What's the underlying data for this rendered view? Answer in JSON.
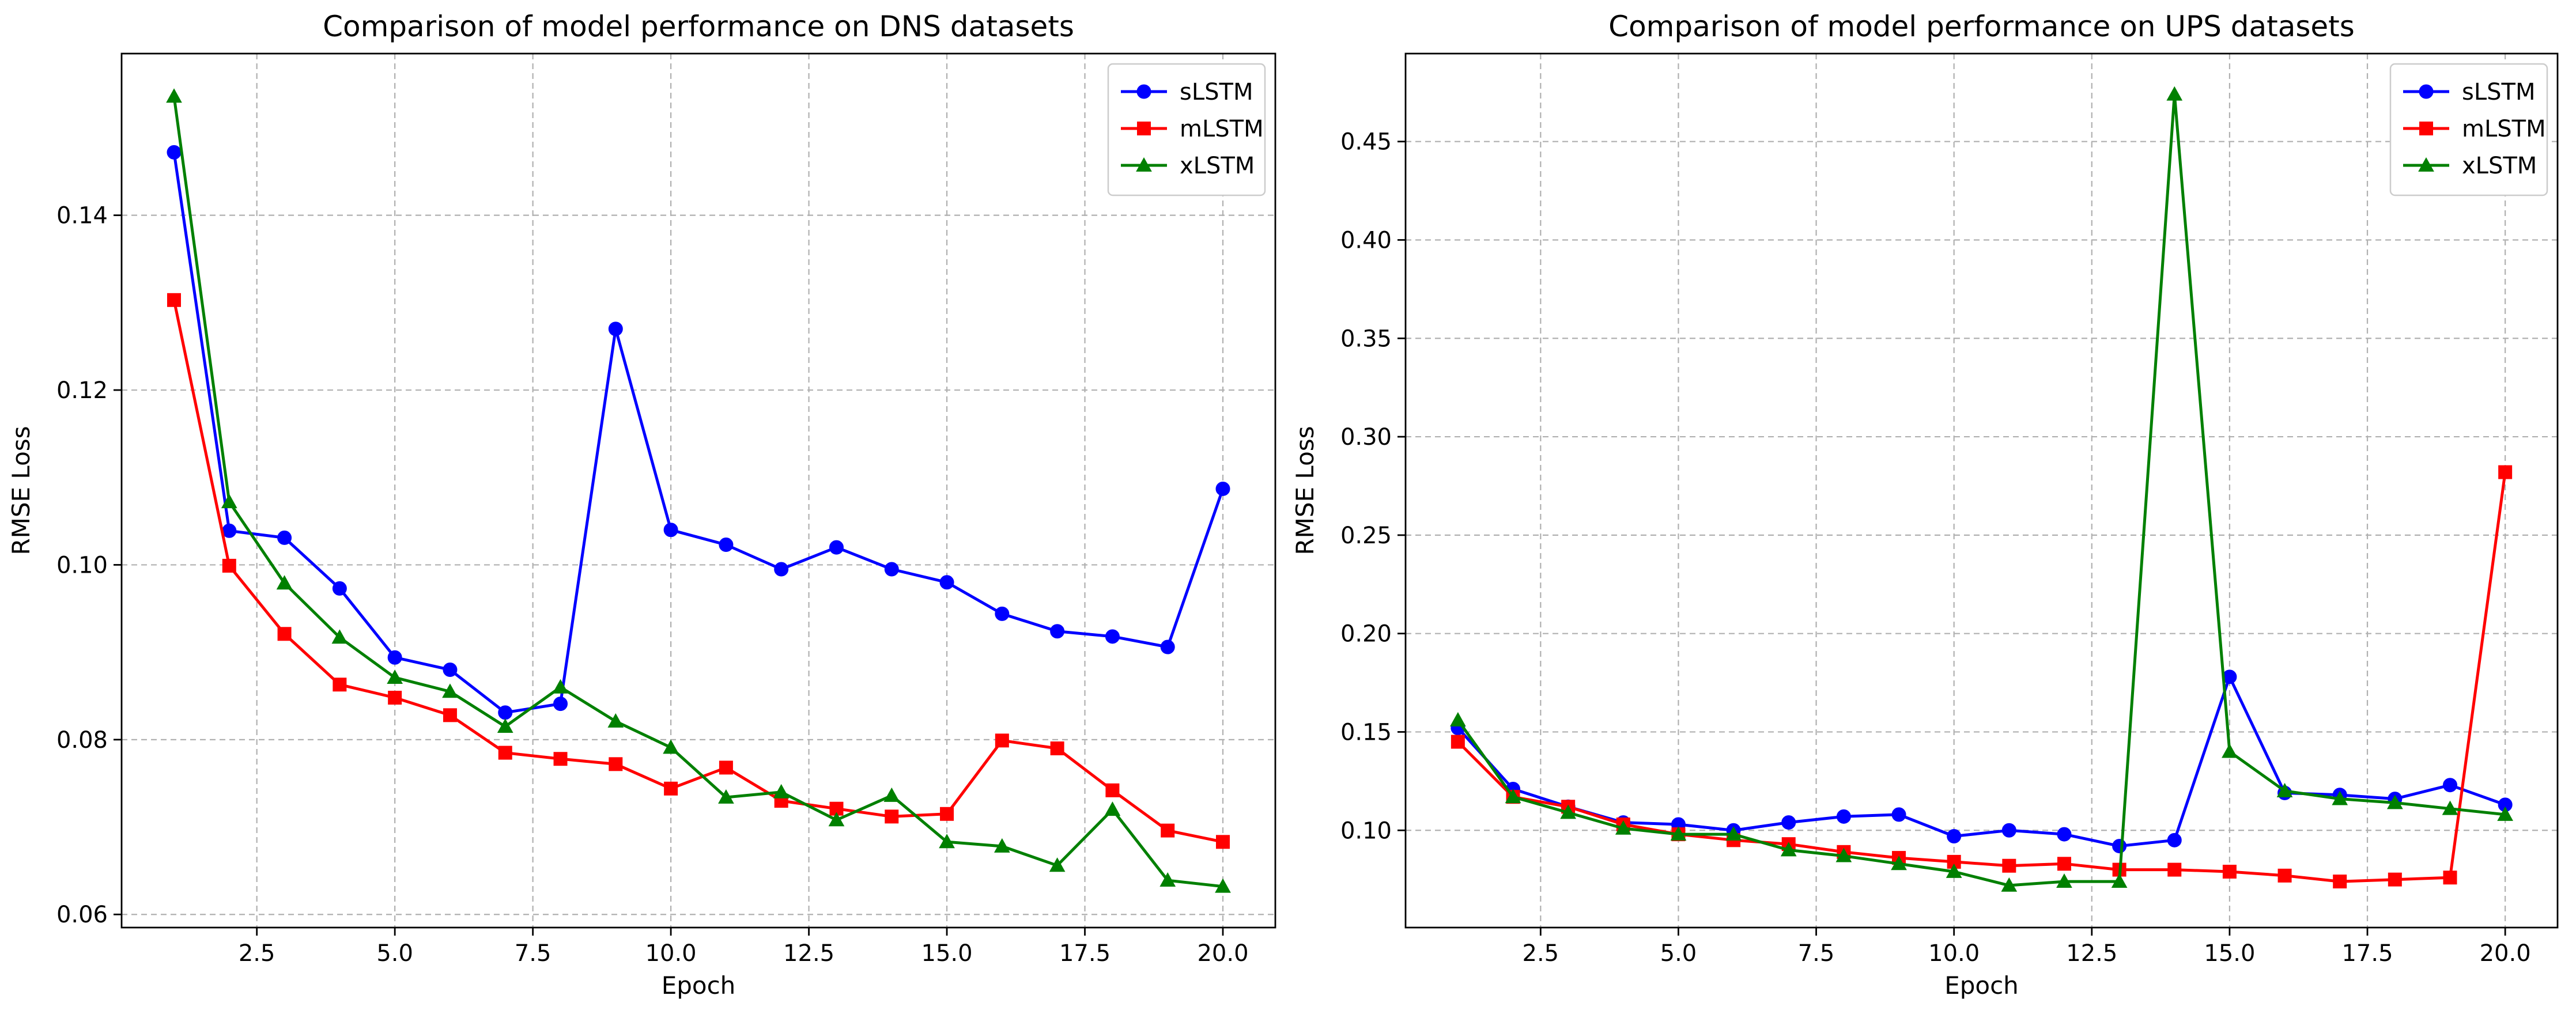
{
  "chart_data": [
    {
      "type": "line",
      "title": "Comparison of model performance on DNS datasets",
      "xlabel": "Epoch",
      "ylabel": "RMSE Loss",
      "xlim": [
        0.05,
        20.95
      ],
      "ylim": [
        0.0585,
        0.1585
      ],
      "xticks": [
        2.5,
        5.0,
        7.5,
        10.0,
        12.5,
        15.0,
        17.5,
        20.0
      ],
      "xtick_labels": [
        "2.5",
        "5.0",
        "7.5",
        "10.0",
        "12.5",
        "15.0",
        "17.5",
        "20.0"
      ],
      "yticks": [
        0.06,
        0.08,
        0.1,
        0.12,
        0.14
      ],
      "ytick_labels": [
        "0.06",
        "0.08",
        "0.10",
        "0.12",
        "0.14"
      ],
      "grid": true,
      "legend": "top-right",
      "x": [
        1,
        2,
        3,
        4,
        5,
        6,
        7,
        8,
        9,
        10,
        11,
        12,
        13,
        14,
        15,
        16,
        17,
        18,
        19,
        20
      ],
      "series": [
        {
          "name": "sLSTM",
          "color": "#0000ff",
          "marker": "circle",
          "values": [
            0.1472,
            0.1039,
            0.1031,
            0.0973,
            0.0894,
            0.088,
            0.0831,
            0.0841,
            0.127,
            0.104,
            0.1023,
            0.0995,
            0.102,
            0.0995,
            0.098,
            0.0944,
            0.0924,
            0.0918,
            0.0906,
            0.1087
          ]
        },
        {
          "name": "mLSTM",
          "color": "#ff0000",
          "marker": "square",
          "values": [
            0.1303,
            0.0999,
            0.0921,
            0.0863,
            0.0848,
            0.0828,
            0.0785,
            0.0778,
            0.0772,
            0.0744,
            0.0768,
            0.073,
            0.0721,
            0.0712,
            0.0715,
            0.0799,
            0.079,
            0.0742,
            0.0696,
            0.0683
          ]
        },
        {
          "name": "xLSTM",
          "color": "#008000",
          "marker": "triangle",
          "values": [
            0.1536,
            0.1072,
            0.0979,
            0.0917,
            0.0871,
            0.0855,
            0.0815,
            0.086,
            0.0821,
            0.0791,
            0.0734,
            0.074,
            0.0708,
            0.0736,
            0.0683,
            0.0678,
            0.0656,
            0.072,
            0.0639,
            0.0632
          ]
        }
      ]
    },
    {
      "type": "line",
      "title": "Comparison of model performance on UPS datasets",
      "xlabel": "Epoch",
      "ylabel": "RMSE Loss",
      "xlim": [
        0.05,
        20.95
      ],
      "ylim": [
        0.0506,
        0.4947
      ],
      "xticks": [
        2.5,
        5.0,
        7.5,
        10.0,
        12.5,
        15.0,
        17.5,
        20.0
      ],
      "xtick_labels": [
        "2.5",
        "5.0",
        "7.5",
        "10.0",
        "12.5",
        "15.0",
        "17.5",
        "20.0"
      ],
      "yticks": [
        0.1,
        0.15,
        0.2,
        0.25,
        0.3,
        0.35,
        0.4,
        0.45
      ],
      "ytick_labels": [
        "0.10",
        "0.15",
        "0.20",
        "0.25",
        "0.30",
        "0.35",
        "0.40",
        "0.45"
      ],
      "grid": true,
      "legend": "top-right",
      "x": [
        1,
        2,
        3,
        4,
        5,
        6,
        7,
        8,
        9,
        10,
        11,
        12,
        13,
        14,
        15,
        16,
        17,
        18,
        19,
        20
      ],
      "series": [
        {
          "name": "sLSTM",
          "color": "#0000ff",
          "marker": "circle",
          "values": [
            0.152,
            0.121,
            0.112,
            0.104,
            0.103,
            0.1,
            0.104,
            0.107,
            0.108,
            0.097,
            0.1,
            0.098,
            0.092,
            0.095,
            0.178,
            0.119,
            0.118,
            0.116,
            0.123,
            0.113
          ]
        },
        {
          "name": "mLSTM",
          "color": "#ff0000",
          "marker": "square",
          "values": [
            0.145,
            0.117,
            0.112,
            0.103,
            0.098,
            0.095,
            0.093,
            0.089,
            0.086,
            0.084,
            0.082,
            0.083,
            0.08,
            0.08,
            0.079,
            0.077,
            0.074,
            0.075,
            0.076,
            0.282
          ]
        },
        {
          "name": "xLSTM",
          "color": "#008000",
          "marker": "triangle",
          "values": [
            0.156,
            0.117,
            0.109,
            0.101,
            0.098,
            0.098,
            0.09,
            0.087,
            0.083,
            0.079,
            0.072,
            0.074,
            0.074,
            0.474,
            0.14,
            0.12,
            0.116,
            0.114,
            0.111,
            0.108
          ]
        }
      ]
    }
  ]
}
